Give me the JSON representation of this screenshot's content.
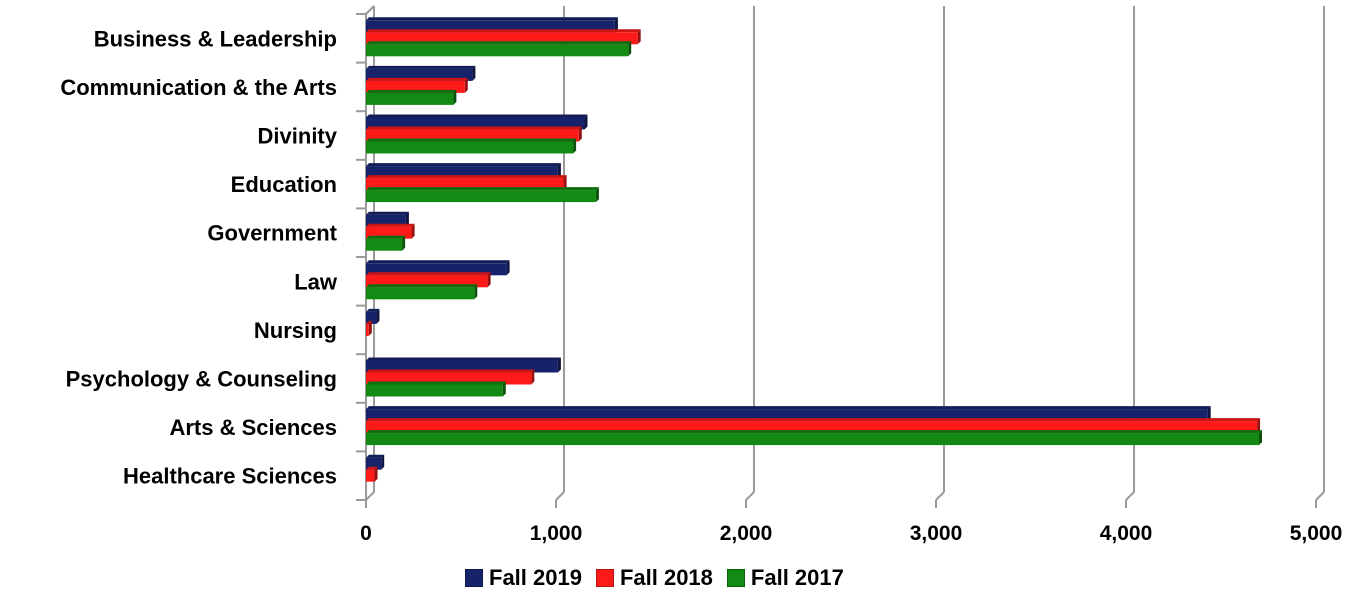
{
  "chart_data": {
    "type": "bar",
    "orientation": "horizontal",
    "categories": [
      "Business & Leadership",
      "Communication & the Arts",
      "Divinity",
      "Education",
      "Government",
      "Law",
      "Nursing",
      "Psychology & Counseling",
      "Arts & Sciences",
      "Healthcare Sciences"
    ],
    "series": [
      {
        "name": "Fall 2019",
        "color": "#16236b",
        "values": [
          1310,
          560,
          1150,
          1010,
          210,
          740,
          55,
          1010,
          4430,
          80
        ]
      },
      {
        "name": "Fall 2018",
        "color": "#ff1a1a",
        "values": [
          1430,
          520,
          1120,
          1040,
          240,
          640,
          15,
          870,
          4690,
          45
        ]
      },
      {
        "name": "Fall 2017",
        "color": "#138a13",
        "values": [
          1380,
          460,
          1090,
          1210,
          190,
          570,
          0,
          720,
          4700,
          0
        ]
      }
    ],
    "xlim": [
      0,
      5000
    ],
    "xticks": [
      0,
      1000,
      2000,
      3000,
      4000,
      5000
    ],
    "xtick_labels": [
      "0",
      "1,000",
      "2,000",
      "3,000",
      "4,000",
      "5,000"
    ],
    "title": "",
    "xlabel": "",
    "ylabel": "",
    "grid": "vertical",
    "legend_position": "bottom"
  }
}
